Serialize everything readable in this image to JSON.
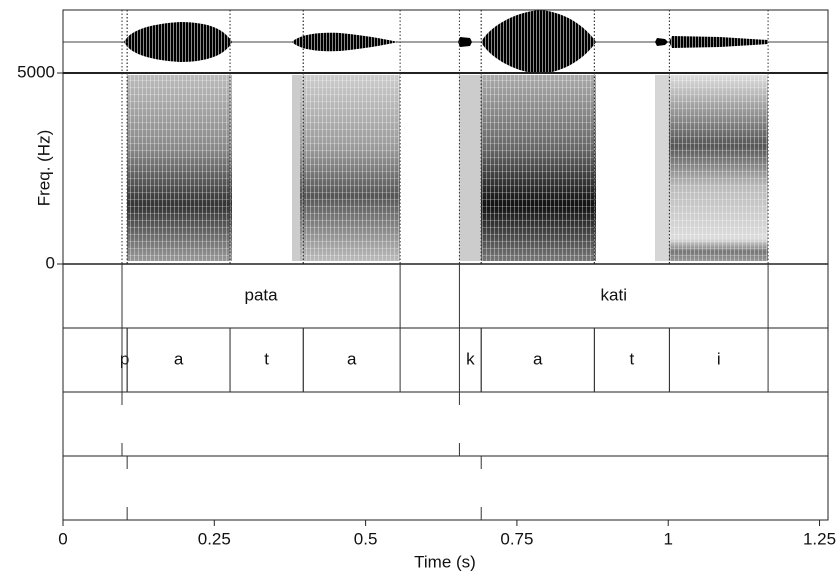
{
  "chart_data": {
    "type": "textgrid",
    "xlabel": "Time (s)",
    "ylabel": "Freq. (Hz)",
    "xlim": [
      0,
      1.264
    ],
    "xticks": [
      0,
      0.25,
      0.5,
      0.75,
      1,
      1.25
    ],
    "ylim": [
      0,
      5000
    ],
    "yticks": [
      0,
      5000
    ],
    "tiers": [
      {
        "kind": "interval",
        "intervals": [
          {
            "start": 0.0975,
            "end": 0.557,
            "text": "pata"
          },
          {
            "start": 0.655,
            "end": 1.165,
            "text": "kati"
          }
        ]
      },
      {
        "kind": "interval",
        "intervals": [
          {
            "start": 0.0975,
            "end": 0.106,
            "text": "p"
          },
          {
            "start": 0.106,
            "end": 0.276,
            "text": "a"
          },
          {
            "start": 0.276,
            "end": 0.397,
            "text": "t"
          },
          {
            "start": 0.397,
            "end": 0.557,
            "text": "a"
          },
          {
            "start": 0.655,
            "end": 0.691,
            "text": "k"
          },
          {
            "start": 0.691,
            "end": 0.878,
            "text": "a"
          },
          {
            "start": 0.878,
            "end": 1.002,
            "text": "t"
          },
          {
            "start": 1.002,
            "end": 1.165,
            "text": "i"
          }
        ]
      },
      {
        "kind": "point",
        "points": [
          0.0975,
          0.655
        ]
      },
      {
        "kind": "point",
        "points": [
          0.106,
          0.691
        ]
      }
    ]
  }
}
